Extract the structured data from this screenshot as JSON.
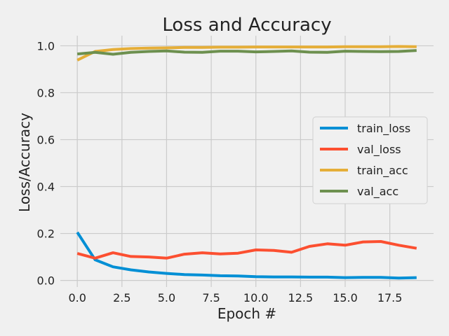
{
  "chart_data": {
    "type": "line",
    "title": "Loss and Accuracy",
    "xlabel": "Epoch #",
    "ylabel": "Loss/Accuracy",
    "xlim": [
      -0.95,
      19.95
    ],
    "ylim": [
      -0.028,
      1.043
    ],
    "xticks": [
      0.0,
      2.5,
      5.0,
      7.5,
      10.0,
      12.5,
      15.0,
      17.5
    ],
    "xtick_labels": [
      "0.0",
      "2.5",
      "5.0",
      "7.5",
      "10.0",
      "12.5",
      "15.0",
      "17.5"
    ],
    "yticks": [
      0.0,
      0.2,
      0.4,
      0.6,
      0.8,
      1.0
    ],
    "ytick_labels": [
      "0.0",
      "0.2",
      "0.4",
      "0.6",
      "0.8",
      "1.0"
    ],
    "grid": true,
    "legend_position": "center-right",
    "x": [
      0,
      1,
      2,
      3,
      4,
      5,
      6,
      7,
      8,
      9,
      10,
      11,
      12,
      13,
      14,
      15,
      16,
      17,
      18,
      19
    ],
    "series": [
      {
        "name": "train_loss",
        "color": "#008fd5",
        "values": [
          0.205,
          0.088,
          0.058,
          0.045,
          0.036,
          0.03,
          0.025,
          0.023,
          0.02,
          0.019,
          0.016,
          0.015,
          0.015,
          0.014,
          0.014,
          0.012,
          0.013,
          0.013,
          0.01,
          0.012
        ]
      },
      {
        "name": "val_loss",
        "color": "#fc4f30",
        "values": [
          0.115,
          0.095,
          0.118,
          0.102,
          0.1,
          0.095,
          0.112,
          0.118,
          0.113,
          0.116,
          0.13,
          0.128,
          0.12,
          0.145,
          0.156,
          0.15,
          0.164,
          0.166,
          0.15,
          0.137
        ]
      },
      {
        "name": "train_acc",
        "color": "#e5ae38",
        "values": [
          0.939,
          0.976,
          0.984,
          0.988,
          0.99,
          0.991,
          0.993,
          0.993,
          0.994,
          0.994,
          0.995,
          0.995,
          0.995,
          0.995,
          0.995,
          0.996,
          0.996,
          0.996,
          0.997,
          0.996
        ]
      },
      {
        "name": "val_acc",
        "color": "#6d904f",
        "values": [
          0.965,
          0.972,
          0.964,
          0.972,
          0.976,
          0.978,
          0.973,
          0.972,
          0.977,
          0.977,
          0.974,
          0.976,
          0.978,
          0.973,
          0.972,
          0.977,
          0.976,
          0.975,
          0.976,
          0.98
        ]
      }
    ]
  }
}
